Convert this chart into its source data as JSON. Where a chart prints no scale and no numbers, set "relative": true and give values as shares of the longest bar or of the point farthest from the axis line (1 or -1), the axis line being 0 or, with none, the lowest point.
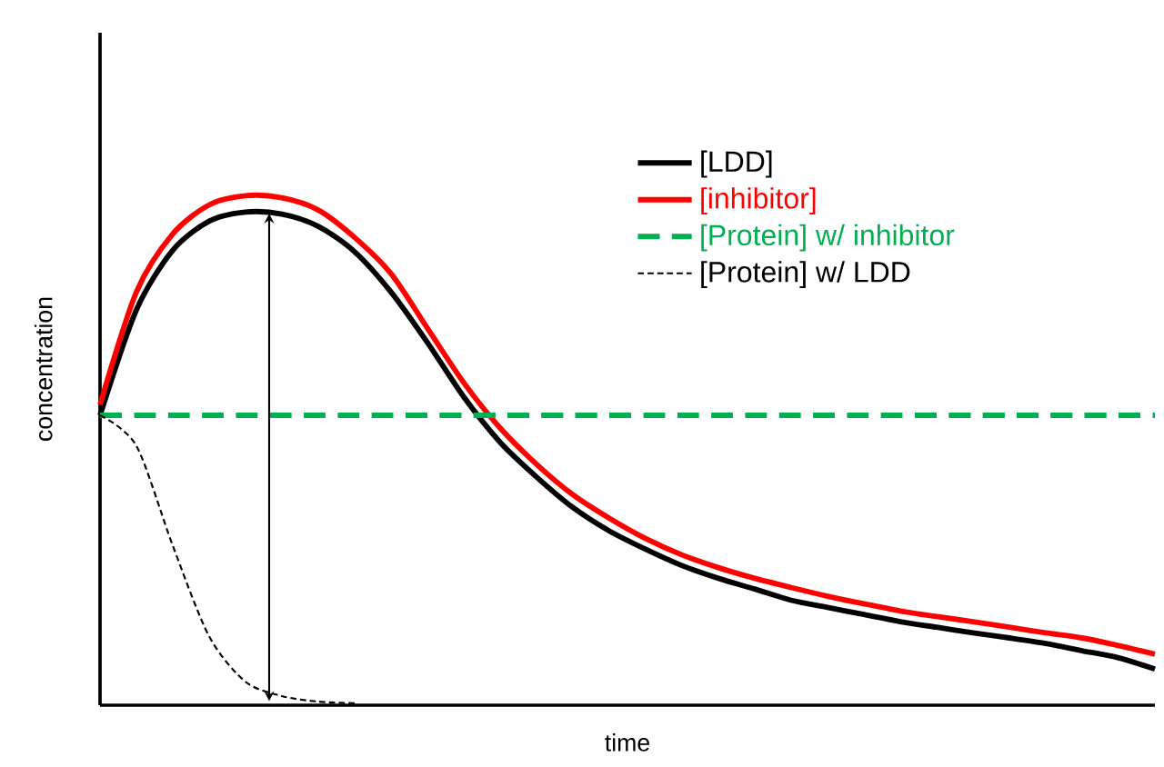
{
  "chart_data": {
    "type": "line",
    "relative": true,
    "xlabel": "time",
    "ylabel": "concentration",
    "legend": "top right",
    "categories": [
      null,
      null,
      null,
      null,
      null,
      null,
      null,
      null,
      null,
      null,
      null,
      null,
      null,
      null,
      null,
      null,
      null,
      null,
      null,
      null,
      null,
      null,
      null,
      null,
      null,
      null,
      null,
      null,
      null,
      null
    ],
    "series": [
      {
        "name": "[LDD]",
        "color": "#000000",
        "line_style": "solid",
        "values": [
          0.569,
          0.776,
          0.893,
          0.95,
          0.968,
          0.964,
          0.94,
          0.89,
          0.811,
          0.712,
          0.605,
          0.516,
          0.448,
          0.388,
          0.342,
          0.306,
          0.274,
          0.249,
          0.228,
          0.206,
          0.192,
          0.178,
          0.164,
          0.153,
          0.142,
          0.132,
          0.121,
          0.107,
          0.093,
          0.071
        ]
      },
      {
        "name": "[inhibitor]",
        "color": "#ff0000",
        "line_style": "solid",
        "values": [
          0.59,
          0.811,
          0.925,
          0.982,
          1,
          0.996,
          0.972,
          0.918,
          0.847,
          0.74,
          0.633,
          0.544,
          0.473,
          0.413,
          0.367,
          0.327,
          0.295,
          0.27,
          0.249,
          0.231,
          0.214,
          0.199,
          0.185,
          0.174,
          0.164,
          0.153,
          0.142,
          0.132,
          0.117,
          0.1
        ]
      },
      {
        "name": "[Protein] w/ inhibitor",
        "color": "#00b050",
        "line_style": "dashed",
        "values": [
          0.569,
          0.569,
          0.569,
          0.569,
          0.569,
          0.569,
          0.569,
          0.569,
          0.569,
          0.569,
          0.569,
          0.569,
          0.569,
          0.569,
          0.569,
          0.569,
          0.569,
          0.569,
          0.569,
          0.569,
          0.569,
          0.569,
          0.569,
          0.569,
          0.569,
          0.569,
          0.569,
          0.569,
          0.569,
          0.569
        ]
      },
      {
        "name": "[Protein] w/ LDD",
        "color": "#000000",
        "line_style": "dotted",
        "values": [
          0.569,
          0.509,
          0.313,
          0.135,
          0.046,
          0.018,
          0.007,
          0.004,
          null,
          null,
          null,
          null,
          null,
          null,
          null,
          null,
          null,
          null,
          null,
          null,
          null,
          null,
          null,
          null,
          null,
          null,
          null,
          null,
          null,
          null
        ]
      }
    ]
  }
}
